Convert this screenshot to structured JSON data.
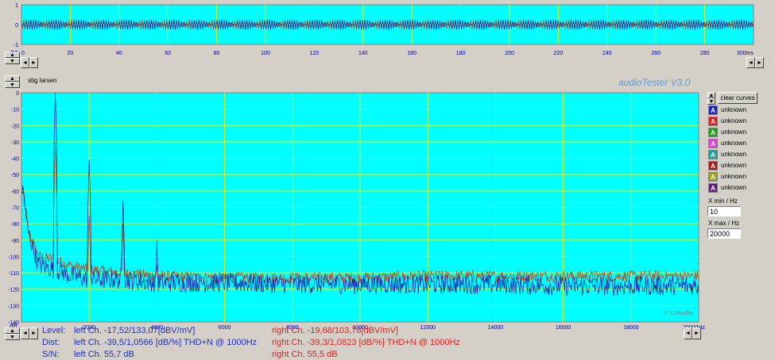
{
  "app": {
    "brand": "audioTester  V3.0",
    "profile_name": "stig larsen",
    "copyright": "© U.Mueller"
  },
  "colors": {
    "plot_bg": "#00ffff",
    "grid": "#ffff00",
    "left_channel": "#1a1aa8",
    "right_channel": "#c83c14",
    "brand": "#5a9ad8"
  },
  "scope": {
    "y_ticks": [
      "1",
      "0",
      "-1"
    ],
    "x_ticks": [
      "0",
      "20",
      "40",
      "60",
      "80",
      "100",
      "120",
      "140",
      "160",
      "180",
      "200",
      "220",
      "240",
      "260",
      "280"
    ],
    "x_last": "300ms",
    "fs_label": "FS"
  },
  "spectrum": {
    "y_unit": "dB",
    "y_ticks": [
      "0",
      "-10",
      "-20",
      "-30",
      "-40",
      "-50",
      "-60",
      "-70",
      "-80",
      "-90",
      "-100",
      "-110",
      "-120",
      "-130",
      "-140"
    ],
    "x_ticks": [
      "2000",
      "4000",
      "6000",
      "8000",
      "10000",
      "12000",
      "14000",
      "16000",
      "18000"
    ],
    "x_last": "20000Hz"
  },
  "controls": {
    "clear_curves": "clear curves",
    "xmin_label": "X min / Hz",
    "xmin_value": "10",
    "xmax_label": "X max / Hz",
    "xmax_value": "20000",
    "arrow_left": "◄",
    "arrow_right": "►",
    "arrow_up": "▲",
    "arrow_down": "▼"
  },
  "legend": [
    {
      "label": "unknown",
      "color": "#2020c8",
      "glyph": "A"
    },
    {
      "label": "unknown",
      "color": "#e02020",
      "glyph": "A"
    },
    {
      "label": "unknown",
      "color": "#20a020",
      "glyph": "A"
    },
    {
      "label": "unknown",
      "color": "#e040e0",
      "glyph": "A"
    },
    {
      "label": "unknown",
      "color": "#20a0a0",
      "glyph": "A"
    },
    {
      "label": "unknown",
      "color": "#a02020",
      "glyph": "A"
    },
    {
      "label": "unknown",
      "color": "#a0a020",
      "glyph": "A"
    },
    {
      "label": "unknown",
      "color": "#602080",
      "glyph": "A"
    }
  ],
  "stats": {
    "level_label": "Level:",
    "dist_label": "Dist:",
    "sn_label": "S/N:",
    "left_level": "left Ch. -17,52/133,07[dBV/mV]",
    "left_dist": "left Ch. -39,5/1,0566 [dB/%] THD+N  @ 1000Hz",
    "left_sn": "left Ch. 55,7 dB",
    "right_level": "right Ch. -19,68/103,78[dBV/mV]",
    "right_dist": "right Ch. -39,3/1,0823 [dB/%] THD+N  @ 1000Hz",
    "right_sn": "right Ch. 55,5 dB"
  },
  "chart_data": [
    {
      "type": "line",
      "title": "",
      "xlabel": "",
      "ylabel": "",
      "x_unit": "ms",
      "xlim": [
        0,
        300
      ],
      "ylim": [
        -1,
        1
      ],
      "grid": true,
      "series": [
        {
          "amplitude": 0.25,
          "frequency_hz": 1000
        }
      ]
    },
    {
      "type": "line",
      "title": "",
      "xlabel": "",
      "ylabel": "",
      "x_unit": "Hz",
      "y_unit": "dB",
      "xlim": [
        0,
        20000
      ],
      "ylim": [
        -140,
        0
      ],
      "grid": true,
      "series": [
        {
          "peaks": [
            [
              1000,
              0
            ],
            [
              2000,
              -41
            ],
            [
              3000,
              -66
            ],
            [
              4000,
              -90
            ]
          ],
          "x": [
            50,
            200,
            500,
            1000,
            1500,
            2000,
            3000,
            4000,
            6000,
            8000,
            10000,
            12000,
            14000,
            16000,
            18000,
            20000
          ],
          "y": [
            -60,
            -85,
            -105,
            -108,
            -112,
            -114,
            -114,
            -116,
            -116,
            -117,
            -117,
            -117,
            -117,
            -118,
            -118,
            -118
          ]
        },
        {
          "peaks": [
            [
              1000,
              -30
            ],
            [
              2000,
              -75
            ],
            [
              3000,
              -80
            ],
            [
              4000,
              -105
            ]
          ],
          "x": [
            50,
            200,
            500,
            1000,
            1500,
            2000,
            3000,
            4000,
            6000,
            8000,
            10000,
            12000,
            14000,
            16000,
            18000,
            20000
          ],
          "y": [
            -60,
            -85,
            -100,
            -102,
            -106,
            -108,
            -110,
            -112,
            -113,
            -113,
            -113,
            -112,
            -112,
            -112,
            -112,
            -112
          ]
        }
      ]
    }
  ]
}
